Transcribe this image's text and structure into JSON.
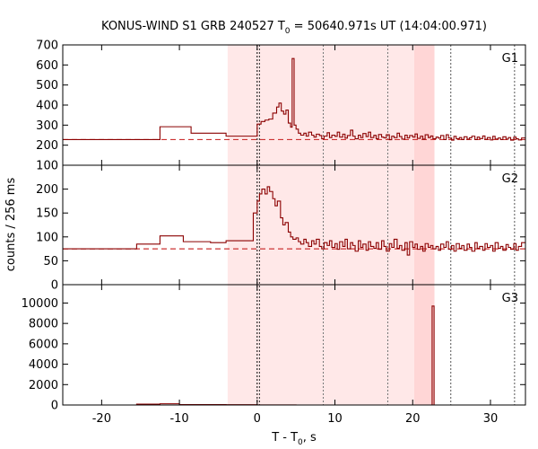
{
  "chart_data": {
    "type": "line",
    "title": {
      "prefix": "KONUS-WIND S1 GRB 240527 T",
      "sub": "0",
      "suffix": " = 50640.971s UT (14:04:00.971)"
    },
    "xlabel": {
      "prefix": "T - T",
      "sub": "0",
      "suffix": ", s"
    },
    "ylabel": "counts / 256 ms",
    "xlim": [
      -25,
      34.5
    ],
    "xticks": [
      -20,
      -10,
      0,
      10,
      20,
      30
    ],
    "shaded_regions": [
      {
        "x0": -3.8,
        "x1": 20.2,
        "color": "#ffe8e8"
      },
      {
        "x0": 20.2,
        "x1": 22.8,
        "color": "#ffd6d6"
      }
    ],
    "vlines": [
      {
        "x": 0.0,
        "color": "#000000",
        "dash": "2,2"
      },
      {
        "x": 0.3,
        "color": "#333333",
        "dash": "2,2"
      },
      {
        "x": 8.5,
        "color": "#777777",
        "dash": "2,2"
      },
      {
        "x": 16.8,
        "color": "#777777",
        "dash": "2,2"
      },
      {
        "x": 24.9,
        "color": "#555555",
        "dash": "2,2"
      },
      {
        "x": 33.1,
        "color": "#555555",
        "dash": "2,2"
      }
    ],
    "line_color": "#8b0000",
    "background_color": "#cc3333",
    "panels": [
      {
        "name": "G1",
        "ylim": [
          100,
          700
        ],
        "yticks": [
          100,
          200,
          300,
          400,
          500,
          600,
          700
        ],
        "background_level": 228,
        "steps": [
          [
            -25,
            228
          ],
          [
            -20,
            228
          ],
          [
            -15.5,
            228
          ],
          [
            -12.5,
            292
          ],
          [
            -8.5,
            260
          ],
          [
            -4,
            245
          ],
          [
            0,
            305
          ],
          [
            0.5,
            318
          ],
          [
            1.0,
            325
          ],
          [
            1.5,
            330
          ],
          [
            2.0,
            360
          ],
          [
            2.5,
            390
          ],
          [
            2.8,
            410
          ],
          [
            3.1,
            370
          ],
          [
            3.4,
            355
          ],
          [
            3.7,
            375
          ],
          [
            4.0,
            310
          ],
          [
            4.3,
            290
          ],
          [
            4.5,
            632
          ],
          [
            4.75,
            300
          ],
          [
            5.0,
            280
          ],
          [
            5.3,
            260
          ],
          [
            5.6,
            250
          ],
          [
            6.0,
            260
          ],
          [
            6.3,
            245
          ],
          [
            6.6,
            265
          ],
          [
            7.0,
            250
          ],
          [
            7.3,
            240
          ],
          [
            7.6,
            255
          ],
          [
            8.0,
            248
          ],
          [
            8.3,
            232
          ],
          [
            8.6,
            245
          ],
          [
            9.0,
            262
          ],
          [
            9.3,
            238
          ],
          [
            9.6,
            250
          ],
          [
            10.0,
            244
          ],
          [
            10.3,
            265
          ],
          [
            10.6,
            240
          ],
          [
            11.0,
            255
          ],
          [
            11.3,
            235
          ],
          [
            11.6,
            248
          ],
          [
            12.0,
            275
          ],
          [
            12.3,
            245
          ],
          [
            12.6,
            232
          ],
          [
            13.0,
            250
          ],
          [
            13.3,
            238
          ],
          [
            13.6,
            258
          ],
          [
            14.0,
            243
          ],
          [
            14.3,
            265
          ],
          [
            14.6,
            238
          ],
          [
            15.0,
            249
          ],
          [
            15.3,
            232
          ],
          [
            15.6,
            253
          ],
          [
            16.0,
            240
          ],
          [
            16.3,
            236
          ],
          [
            16.6,
            252
          ],
          [
            17.0,
            227
          ],
          [
            17.3,
            245
          ],
          [
            17.6,
            238
          ],
          [
            18.0,
            260
          ],
          [
            18.3,
            243
          ],
          [
            18.6,
            230
          ],
          [
            19.0,
            250
          ],
          [
            19.3,
            236
          ],
          [
            19.6,
            248
          ],
          [
            20.0,
            240
          ],
          [
            20.3,
            256
          ],
          [
            20.6,
            234
          ],
          [
            21.0,
            245
          ],
          [
            21.3,
            230
          ],
          [
            21.6,
            252
          ],
          [
            22.0,
            238
          ],
          [
            22.3,
            246
          ],
          [
            22.6,
            232
          ],
          [
            23.0,
            240
          ],
          [
            23.3,
            235
          ],
          [
            23.6,
            248
          ],
          [
            24.0,
            228
          ],
          [
            24.3,
            252
          ],
          [
            24.6,
            236
          ],
          [
            25.0,
            225
          ],
          [
            25.3,
            244
          ],
          [
            25.6,
            232
          ],
          [
            26.0,
            238
          ],
          [
            26.3,
            228
          ],
          [
            26.6,
            242
          ],
          [
            27.0,
            230
          ],
          [
            27.3,
            237
          ],
          [
            27.6,
            245
          ],
          [
            28.0,
            228
          ],
          [
            28.3,
            240
          ],
          [
            28.6,
            233
          ],
          [
            29.0,
            246
          ],
          [
            29.3,
            229
          ],
          [
            29.6,
            238
          ],
          [
            30.0,
            226
          ],
          [
            30.3,
            244
          ],
          [
            30.6,
            231
          ],
          [
            31.0,
            236
          ],
          [
            31.3,
            228
          ],
          [
            31.6,
            242
          ],
          [
            32.0,
            230
          ],
          [
            32.3,
            238
          ],
          [
            32.6,
            225
          ],
          [
            33.0,
            240
          ],
          [
            33.3,
            232
          ],
          [
            33.6,
            226
          ],
          [
            34.0,
            236
          ],
          [
            34.5,
            236
          ]
        ]
      },
      {
        "name": "G2",
        "ylim": [
          0,
          250
        ],
        "yticks": [
          0,
          50,
          100,
          150,
          200
        ],
        "background_level": 75,
        "steps": [
          [
            -25,
            75
          ],
          [
            -20,
            75
          ],
          [
            -15.5,
            85
          ],
          [
            -12.5,
            102
          ],
          [
            -9.5,
            90
          ],
          [
            -6.0,
            88
          ],
          [
            -4,
            92
          ],
          [
            -0.5,
            150
          ],
          [
            0,
            175
          ],
          [
            0.3,
            190
          ],
          [
            0.6,
            200
          ],
          [
            1.0,
            190
          ],
          [
            1.3,
            205
          ],
          [
            1.6,
            195
          ],
          [
            2.0,
            180
          ],
          [
            2.3,
            165
          ],
          [
            2.6,
            175
          ],
          [
            3.0,
            140
          ],
          [
            3.3,
            125
          ],
          [
            3.6,
            130
          ],
          [
            4.0,
            110
          ],
          [
            4.3,
            100
          ],
          [
            4.6,
            95
          ],
          [
            5.0,
            98
          ],
          [
            5.3,
            90
          ],
          [
            5.6,
            85
          ],
          [
            6.0,
            95
          ],
          [
            6.3,
            88
          ],
          [
            6.6,
            80
          ],
          [
            7.0,
            92
          ],
          [
            7.3,
            85
          ],
          [
            7.6,
            95
          ],
          [
            8.0,
            80
          ],
          [
            8.3,
            75
          ],
          [
            8.6,
            88
          ],
          [
            9.0,
            82
          ],
          [
            9.3,
            92
          ],
          [
            9.6,
            78
          ],
          [
            10.0,
            86
          ],
          [
            10.3,
            74
          ],
          [
            10.6,
            90
          ],
          [
            11.0,
            80
          ],
          [
            11.3,
            95
          ],
          [
            11.6,
            75
          ],
          [
            12.0,
            88
          ],
          [
            12.3,
            82
          ],
          [
            12.6,
            70
          ],
          [
            13.0,
            92
          ],
          [
            13.3,
            78
          ],
          [
            13.6,
            85
          ],
          [
            14.0,
            72
          ],
          [
            14.3,
            90
          ],
          [
            14.6,
            80
          ],
          [
            15.0,
            76
          ],
          [
            15.3,
            88
          ],
          [
            15.6,
            74
          ],
          [
            16.0,
            92
          ],
          [
            16.3,
            80
          ],
          [
            16.6,
            70
          ],
          [
            17.0,
            86
          ],
          [
            17.3,
            78
          ],
          [
            17.6,
            95
          ],
          [
            18.0,
            76
          ],
          [
            18.3,
            82
          ],
          [
            18.6,
            72
          ],
          [
            19.0,
            88
          ],
          [
            19.3,
            62
          ],
          [
            19.6,
            90
          ],
          [
            20.0,
            78
          ],
          [
            20.3,
            85
          ],
          [
            20.6,
            74
          ],
          [
            21.0,
            80
          ],
          [
            21.3,
            70
          ],
          [
            21.6,
            86
          ],
          [
            22.0,
            78
          ],
          [
            22.3,
            82
          ],
          [
            22.6,
            75
          ],
          [
            23.0,
            80
          ],
          [
            23.3,
            72
          ],
          [
            23.6,
            85
          ],
          [
            24.0,
            78
          ],
          [
            24.3,
            90
          ],
          [
            24.6,
            74
          ],
          [
            25.0,
            82
          ],
          [
            25.3,
            70
          ],
          [
            25.6,
            86
          ],
          [
            26.0,
            76
          ],
          [
            26.3,
            82
          ],
          [
            26.6,
            72
          ],
          [
            27.0,
            85
          ],
          [
            27.3,
            78
          ],
          [
            27.6,
            70
          ],
          [
            28.0,
            88
          ],
          [
            28.3,
            76
          ],
          [
            28.6,
            80
          ],
          [
            29.0,
            72
          ],
          [
            29.3,
            86
          ],
          [
            29.6,
            78
          ],
          [
            30.0,
            82
          ],
          [
            30.3,
            70
          ],
          [
            30.6,
            88
          ],
          [
            31.0,
            76
          ],
          [
            31.3,
            80
          ],
          [
            31.6,
            72
          ],
          [
            32.0,
            84
          ],
          [
            32.3,
            78
          ],
          [
            32.6,
            74
          ],
          [
            33.0,
            86
          ],
          [
            33.3,
            72
          ],
          [
            33.6,
            80
          ],
          [
            34.0,
            88
          ],
          [
            34.5,
            88
          ]
        ]
      },
      {
        "name": "G3",
        "ylim": [
          0,
          11800
        ],
        "yticks": [
          0,
          2000,
          4000,
          6000,
          8000,
          10000
        ],
        "background_level": null,
        "steps": [
          [
            -25,
            0
          ],
          [
            -15.5,
            80
          ],
          [
            -12.5,
            120
          ],
          [
            -10,
            40
          ],
          [
            -4,
            30
          ],
          [
            0,
            10
          ],
          [
            5,
            0
          ],
          [
            22.5,
            9700
          ],
          [
            22.75,
            0
          ],
          [
            34.5,
            0
          ]
        ]
      }
    ]
  }
}
